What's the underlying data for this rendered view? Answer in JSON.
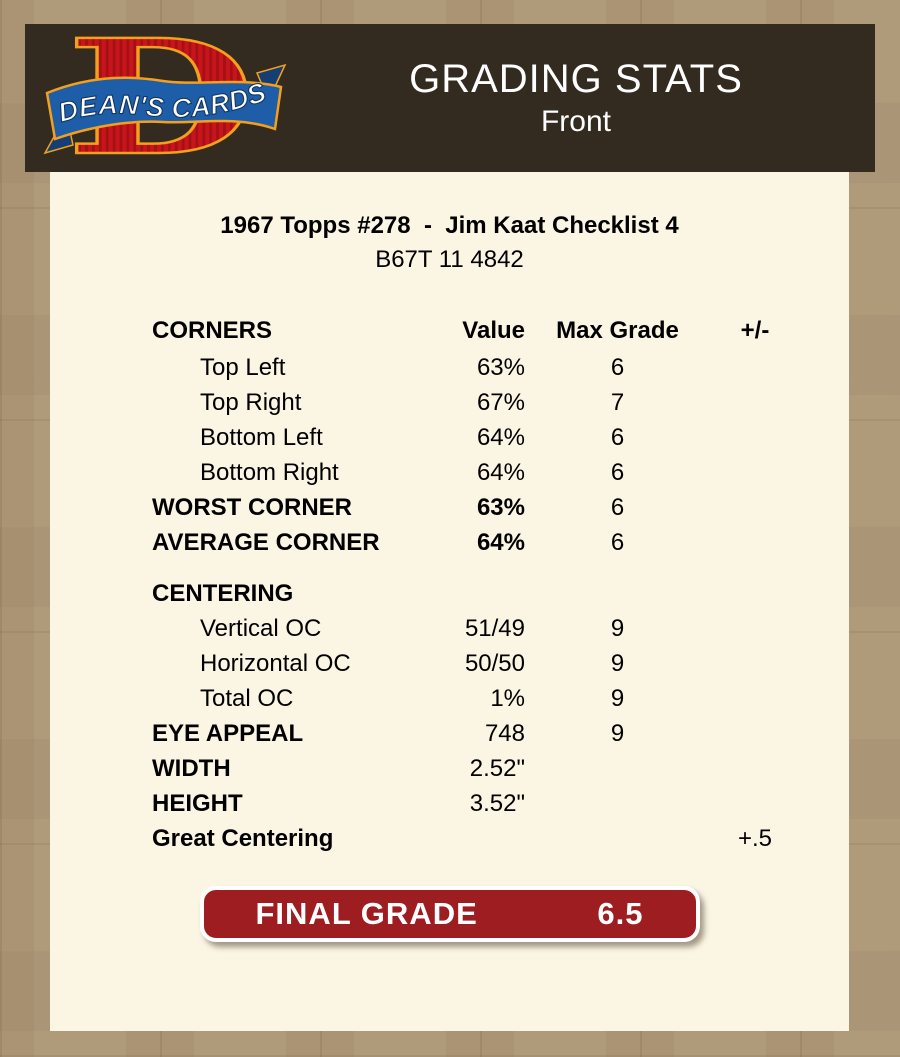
{
  "colors": {
    "page_bg": "#aa9474",
    "header_bar": "#332a20",
    "panel_bg": "#fbf5e4",
    "grade_red": "#9d1d21",
    "logo_red": "#c8151c",
    "logo_blue": "#1e5ea8",
    "logo_orange": "#f2a01e"
  },
  "header": {
    "title": "GRADING STATS",
    "subtitle": "Front",
    "logo_text": "DEAN'S CARDS",
    "logo_letter": "D"
  },
  "card": {
    "title": "1967 Topps #278  -  Jim Kaat Checklist 4",
    "serial": "B67T 11 4842"
  },
  "table": {
    "header": {
      "label": "CORNERS",
      "value": "Value",
      "max": "Max Grade",
      "pm": "+/-"
    },
    "rows": [
      {
        "label": "Top Left",
        "value": "63%",
        "max": "6",
        "indent": true
      },
      {
        "label": "Top Right",
        "value": "67%",
        "max": "7",
        "indent": true
      },
      {
        "label": "Bottom Left",
        "value": "64%",
        "max": "6",
        "indent": true
      },
      {
        "label": "Bottom Right",
        "value": "64%",
        "max": "6",
        "indent": true
      },
      {
        "label": "WORST CORNER",
        "value": "63%",
        "max": "6",
        "bold_label": true,
        "bold_value": true
      },
      {
        "label": "AVERAGE CORNER",
        "value": "64%",
        "max": "6",
        "bold_label": true,
        "bold_value": true
      },
      {
        "label": "CENTERING",
        "bold_label": true,
        "gap_before": true
      },
      {
        "label": "Vertical OC",
        "value": "51/49",
        "max": "9",
        "indent": true
      },
      {
        "label": "Horizontal OC",
        "value": "50/50",
        "max": "9",
        "indent": true
      },
      {
        "label": "Total OC",
        "value": "1%",
        "max": "9",
        "indent": true
      },
      {
        "label": "EYE APPEAL",
        "value": "748",
        "max": "9",
        "bold_label": true
      },
      {
        "label": "WIDTH",
        "value": "2.52\"",
        "bold_label": true
      },
      {
        "label": "HEIGHT",
        "value": "3.52\"",
        "bold_label": true
      },
      {
        "label": "Great Centering",
        "pm": "+.5",
        "bold_label": true
      }
    ]
  },
  "final": {
    "label": "FINAL GRADE",
    "value": "6.5"
  }
}
